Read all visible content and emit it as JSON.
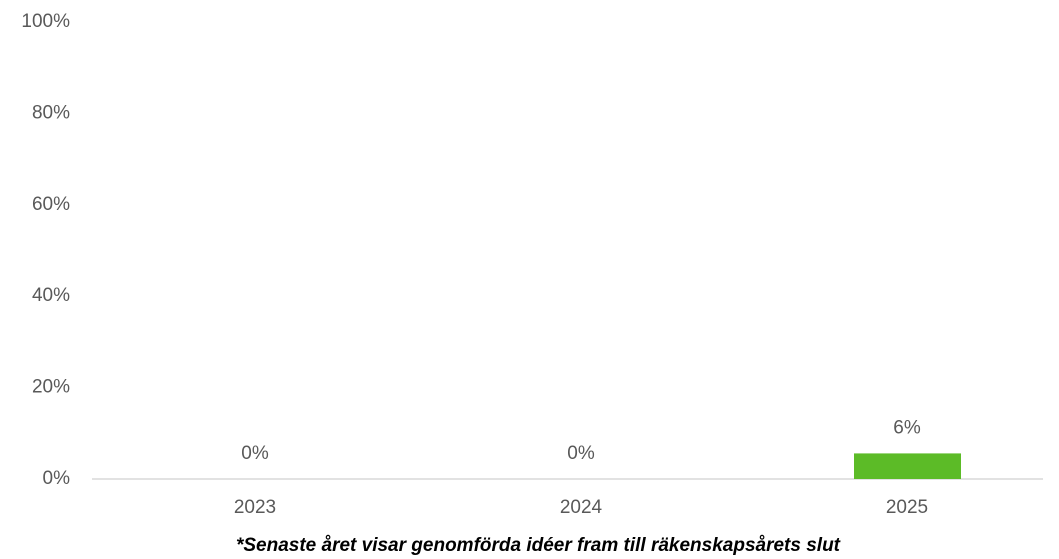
{
  "chart_data": {
    "type": "bar",
    "categories": [
      "2023",
      "2024",
      "2025"
    ],
    "values": [
      0,
      0,
      5.6
    ],
    "value_labels": [
      "0%",
      "0%",
      "6%"
    ],
    "color": "#5cbb27",
    "ylim": [
      0,
      100
    ],
    "yticks": [
      {
        "value": 0,
        "label": "0%"
      },
      {
        "value": 20,
        "label": "20%"
      },
      {
        "value": 40,
        "label": "40%"
      },
      {
        "value": 60,
        "label": "60%"
      },
      {
        "value": 80,
        "label": "80%"
      },
      {
        "value": 100,
        "label": "100%"
      }
    ],
    "grid": false,
    "note": "*Senaste året visar genomförda idéer fram till räkenskapsårets slut"
  }
}
